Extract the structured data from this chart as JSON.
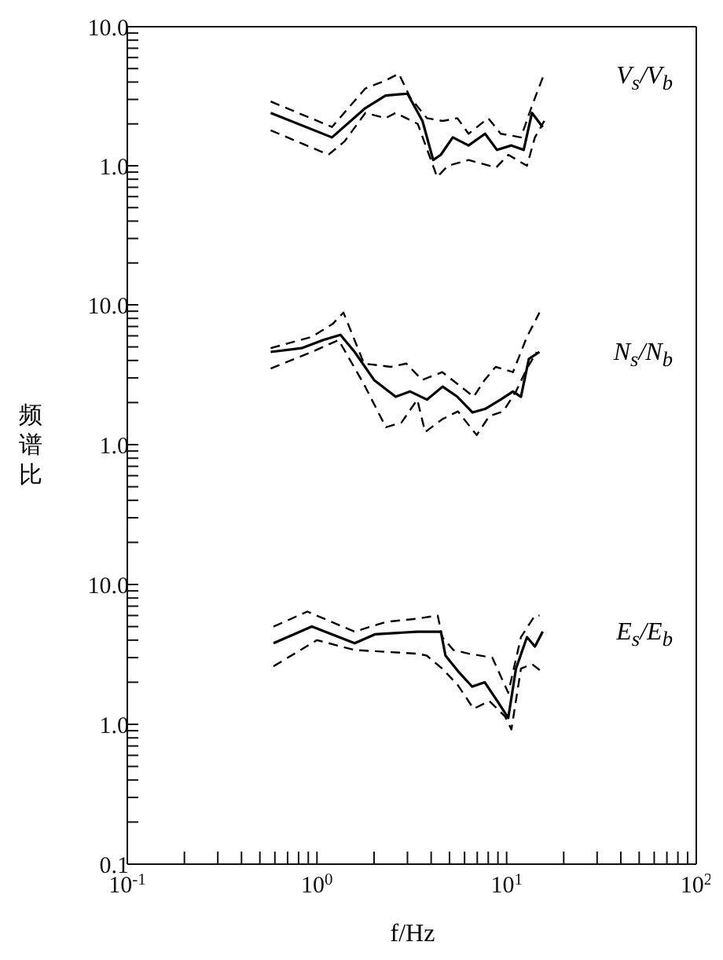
{
  "chart_data": [
    {
      "type": "line",
      "title": "V$_{s}$/V$_{b}$",
      "xlim": [
        0.1,
        100
      ],
      "ylim": [
        0.1,
        10
      ],
      "log": "xy",
      "marker": "none",
      "tick_labels": "y",
      "yticks": [
        {
          "value": 10,
          "label": "10.0"
        },
        {
          "value": 9,
          "label": null
        },
        {
          "value": 8,
          "label": null
        },
        {
          "value": 7,
          "label": null
        },
        {
          "value": 6,
          "label": null
        },
        {
          "value": 5,
          "label": null
        },
        {
          "value": 4,
          "label": null
        },
        {
          "value": 3,
          "label": null
        },
        {
          "value": 2,
          "label": null
        },
        {
          "value": 1,
          "label": "1.0"
        },
        {
          "value": 0.9,
          "label": null
        },
        {
          "value": 0.8,
          "label": null
        },
        {
          "value": 0.7,
          "label": null
        },
        {
          "value": 0.6,
          "label": null
        },
        {
          "value": 0.5,
          "label": null
        },
        {
          "value": 0.4,
          "label": null
        },
        {
          "value": 0.3,
          "label": null
        },
        {
          "value": 0.2,
          "label": null
        }
      ],
      "series": [
        {
          "color": "#000000",
          "line_style": "solid",
          "x": [
            0.57,
            1.2,
            1.8,
            2.3,
            3,
            3.6,
            4.1,
            4.5,
            5.2,
            6.3,
            7.7,
            8.9,
            10.6,
            12.3,
            13.6,
            15.5
          ],
          "values": [
            2.4,
            1.6,
            2.6,
            3.2,
            3.3,
            2.1,
            1.1,
            1.2,
            1.6,
            1.4,
            1.7,
            1.3,
            1.4,
            1.3,
            2.4,
            1.9
          ]
        },
        {
          "color": "#000000",
          "line_style": "dashed",
          "x": [
            0.57,
            1.2,
            1.8,
            2.3,
            2.7,
            3.1,
            3.8,
            4.6,
            5.5,
            6.3,
            8,
            9.3,
            11.9,
            13.6,
            15.8
          ],
          "values": [
            2.9,
            1.9,
            3.6,
            4.1,
            4.6,
            3.1,
            2.2,
            2.1,
            2.2,
            1.7,
            2.2,
            1.7,
            1.6,
            2.7,
            4.6
          ]
        },
        {
          "color": "#000000",
          "line_style": "dashed",
          "x": [
            0.57,
            1.15,
            1.4,
            1.8,
            2.3,
            2.6,
            3.4,
            4.3,
            4.9,
            6.3,
            8.8,
            10.2,
            12.8,
            14.1,
            15.8
          ],
          "values": [
            1.8,
            1.2,
            1.5,
            2.4,
            2.2,
            2.4,
            2.0,
            0.83,
            1.0,
            1.1,
            0.97,
            1.2,
            1.0,
            1.6,
            2.1
          ]
        }
      ]
    },
    {
      "type": "line",
      "title": "N$_{s}$/N$_{b}$",
      "ylabel": "频谱比",
      "xlim": [
        0.1,
        100
      ],
      "ylim": [
        0.1,
        10
      ],
      "log": "xy",
      "marker": "none",
      "tick_labels": "y",
      "yticks": [
        {
          "value": 10,
          "label": "10.0"
        },
        {
          "value": 9,
          "label": null
        },
        {
          "value": 8,
          "label": null
        },
        {
          "value": 7,
          "label": null
        },
        {
          "value": 6,
          "label": null
        },
        {
          "value": 5,
          "label": null
        },
        {
          "value": 4,
          "label": null
        },
        {
          "value": 3,
          "label": null
        },
        {
          "value": 2,
          "label": null
        },
        {
          "value": 1,
          "label": "1.0"
        },
        {
          "value": 0.9,
          "label": null
        },
        {
          "value": 0.8,
          "label": null
        },
        {
          "value": 0.7,
          "label": null
        },
        {
          "value": 0.6,
          "label": null
        },
        {
          "value": 0.5,
          "label": null
        },
        {
          "value": 0.4,
          "label": null
        },
        {
          "value": 0.3,
          "label": null
        },
        {
          "value": 0.2,
          "label": null
        }
      ],
      "series": [
        {
          "color": "#000000",
          "line_style": "solid",
          "x": [
            0.57,
            0.83,
            1.08,
            1.33,
            1.58,
            2,
            2.6,
            3.1,
            3.8,
            4.6,
            5.5,
            6.6,
            7.7,
            9.3,
            10.8,
            11.9,
            13.1,
            14.9
          ],
          "values": [
            4.6,
            4.9,
            5.6,
            6.1,
            4.6,
            2.9,
            2.2,
            2.4,
            2.1,
            2.6,
            2.2,
            1.7,
            1.8,
            2.1,
            2.4,
            2.2,
            4.1,
            4.6
          ]
        },
        {
          "color": "#000000",
          "line_style": "dashed",
          "x": [
            0.57,
            0.94,
            1.21,
            1.38,
            1.77,
            2.45,
            2.96,
            3.58,
            4.58,
            5.54,
            6.7,
            7.66,
            8.75,
            10.8,
            12.8,
            14.9
          ],
          "values": [
            4.9,
            5.9,
            7.3,
            8.8,
            3.8,
            3.6,
            3.8,
            2.9,
            3.3,
            2.7,
            2.2,
            2.9,
            3.6,
            3.3,
            5.9,
            8.8
          ]
        },
        {
          "color": "#000000",
          "line_style": "dashed",
          "x": [
            0.57,
            0.94,
            1.3,
            1.77,
            2.31,
            2.79,
            3.38,
            3.72,
            4.58,
            5.54,
            6.95,
            8.1,
            9.6,
            11.2,
            12.8,
            14.4
          ],
          "values": [
            3.5,
            4.6,
            5.6,
            2.7,
            1.33,
            1.44,
            2.1,
            1.23,
            1.52,
            1.73,
            1.17,
            1.6,
            1.73,
            2.4,
            3.5,
            4.6
          ]
        }
      ]
    },
    {
      "type": "line",
      "title": "E$_{s}$/E$_{b}$",
      "xlabel": "f/Hz",
      "xlim": [
        0.1,
        100
      ],
      "ylim": [
        0.1,
        10
      ],
      "log": "xy",
      "marker": "none",
      "xticks": [
        {
          "value": 0.1,
          "label": "10$^{-1}$"
        },
        {
          "value": 0.2,
          "label": null
        },
        {
          "value": 0.3,
          "label": null
        },
        {
          "value": 0.4,
          "label": null
        },
        {
          "value": 0.5,
          "label": null
        },
        {
          "value": 0.6,
          "label": null
        },
        {
          "value": 0.7,
          "label": null
        },
        {
          "value": 0.8,
          "label": null
        },
        {
          "value": 0.9,
          "label": null
        },
        {
          "value": 1,
          "label": "10$^{0}$"
        },
        {
          "value": 2,
          "label": null
        },
        {
          "value": 3,
          "label": null
        },
        {
          "value": 4,
          "label": null
        },
        {
          "value": 5,
          "label": null
        },
        {
          "value": 6,
          "label": null
        },
        {
          "value": 7,
          "label": null
        },
        {
          "value": 8,
          "label": null
        },
        {
          "value": 9,
          "label": null
        },
        {
          "value": 10,
          "label": "10$^{1}$"
        },
        {
          "value": 20,
          "label": null
        },
        {
          "value": 30,
          "label": null
        },
        {
          "value": 40,
          "label": null
        },
        {
          "value": 50,
          "label": null
        },
        {
          "value": 60,
          "label": null
        },
        {
          "value": 70,
          "label": null
        },
        {
          "value": 80,
          "label": null
        },
        {
          "value": 90,
          "label": null
        },
        {
          "value": 100,
          "label": "10$^{2}$"
        }
      ],
      "yticks": [
        {
          "value": 10,
          "label": "10.0"
        },
        {
          "value": 9,
          "label": null
        },
        {
          "value": 8,
          "label": null
        },
        {
          "value": 7,
          "label": null
        },
        {
          "value": 6,
          "label": null
        },
        {
          "value": 5,
          "label": null
        },
        {
          "value": 4,
          "label": null
        },
        {
          "value": 3,
          "label": null
        },
        {
          "value": 2,
          "label": null
        },
        {
          "value": 1,
          "label": "1.0"
        },
        {
          "value": 0.9,
          "label": null
        },
        {
          "value": 0.8,
          "label": null
        },
        {
          "value": 0.7,
          "label": null
        },
        {
          "value": 0.6,
          "label": null
        },
        {
          "value": 0.5,
          "label": null
        },
        {
          "value": 0.4,
          "label": null
        },
        {
          "value": 0.3,
          "label": null
        },
        {
          "value": 0.2,
          "label": null
        },
        {
          "value": 0.1,
          "label": "0.1"
        }
      ],
      "series": [
        {
          "color": "#000000",
          "line_style": "solid",
          "x": [
            0.59,
            0.94,
            1.58,
            2.02,
            3.38,
            4.5,
            4.76,
            5.54,
            6.58,
            7.66,
            8.92,
            10.2,
            11.2,
            12.8,
            14.1,
            15.5
          ],
          "values": [
            3.8,
            5.0,
            3.8,
            4.4,
            4.6,
            4.6,
            3.1,
            2.4,
            1.86,
            2.0,
            1.47,
            1.11,
            2.5,
            4.2,
            3.6,
            4.6
          ]
        },
        {
          "color": "#000000",
          "line_style": "dashed",
          "x": [
            0.59,
            0.89,
            1.58,
            2.31,
            3.38,
            4.33,
            4.58,
            5.24,
            6.33,
            8.4,
            10.2,
            11.9,
            14.1,
            14.9
          ],
          "values": [
            5.0,
            6.4,
            4.6,
            5.4,
            5.7,
            6.0,
            4.2,
            3.4,
            3.2,
            3.0,
            1.68,
            4.2,
            6.0,
            6.0
          ]
        },
        {
          "color": "#000000",
          "line_style": "dashed",
          "x": [
            0.59,
            1.0,
            1.58,
            3.38,
            3.79,
            4.58,
            5.54,
            6.7,
            8.1,
            9.8,
            10.6,
            11.9,
            13.6,
            15.8
          ],
          "values": [
            2.6,
            4.0,
            3.4,
            3.2,
            3.1,
            2.5,
            1.9,
            1.29,
            1.47,
            1.14,
            0.92,
            2.5,
            2.7,
            2.3
          ]
        }
      ]
    }
  ]
}
